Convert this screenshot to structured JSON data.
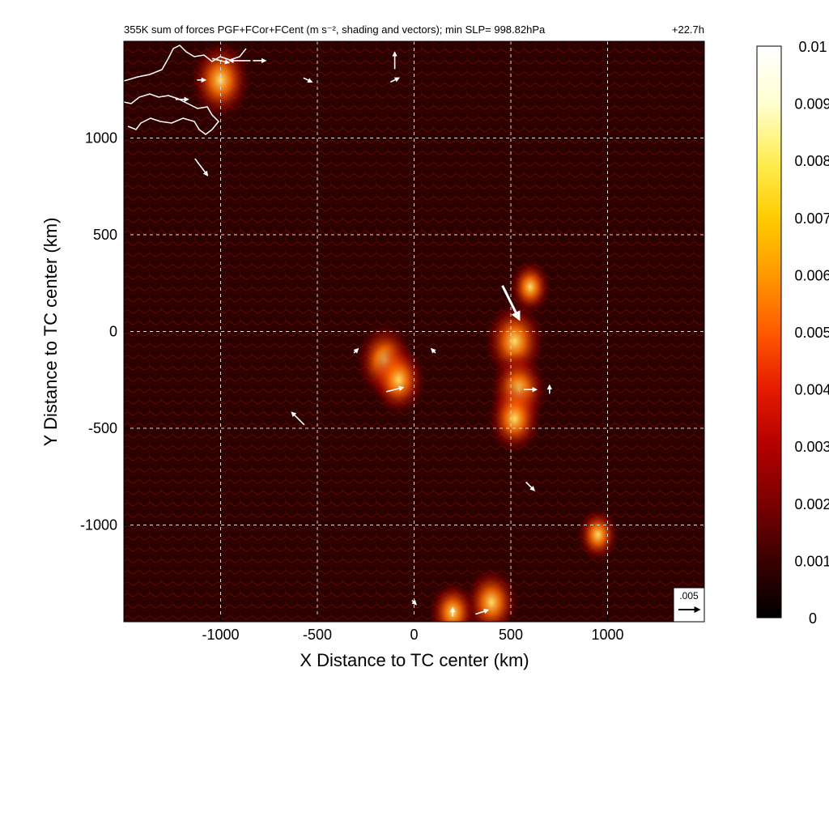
{
  "chart_data": {
    "type": "heatmap",
    "title": "355K sum of forces PGF+FCor+FCent (m s⁻², shading and vectors); min SLP= 998.82hPa",
    "time_label": "+22.7h",
    "xlabel": "X Distance to TC center (km)",
    "ylabel": "Y Distance to TC center (km)",
    "xlim": [
      -1500,
      1500
    ],
    "ylim": [
      -1500,
      1500
    ],
    "xticks": [
      -1000,
      -500,
      0,
      500,
      1000
    ],
    "yticks": [
      -1000,
      -500,
      0,
      500,
      1000
    ],
    "grid": true,
    "colorbar": {
      "range": [
        0,
        0.01
      ],
      "ticks": [
        "0",
        "0.001",
        "0.002",
        "0.003",
        "0.004",
        "0.005",
        "0.006",
        "0.007",
        "0.008",
        "0.009",
        "0.01"
      ],
      "colors": [
        "#000000",
        "#3a0000",
        "#7a0000",
        "#b30000",
        "#e61a00",
        "#ff5a00",
        "#ff9900",
        "#ffcc00",
        "#ffee55",
        "#ffffd0",
        "#ffffff"
      ]
    },
    "reference_vector": {
      "label": ".005",
      "value": 0.005
    },
    "hotspots": [
      {
        "x": -150,
        "y": -150,
        "intensity": 0.0065
      },
      {
        "x": -80,
        "y": -250,
        "intensity": 0.006
      },
      {
        "x": 520,
        "y": -50,
        "intensity": 0.007
      },
      {
        "x": 540,
        "y": -300,
        "intensity": 0.0065
      },
      {
        "x": 520,
        "y": -450,
        "intensity": 0.006
      },
      {
        "x": 400,
        "y": -1400,
        "intensity": 0.006
      },
      {
        "x": -1000,
        "y": 1300,
        "intensity": 0.007
      },
      {
        "x": 600,
        "y": 230,
        "intensity": 0.004
      },
      {
        "x": 950,
        "y": -1050,
        "intensity": 0.004
      },
      {
        "x": 200,
        "y": -1450,
        "intensity": 0.005
      }
    ],
    "vectors": [
      {
        "x": -1000,
        "y": 1400,
        "u": 0.004,
        "v": -0.001
      },
      {
        "x": -900,
        "y": 1400,
        "u": -0.005,
        "v": 0.0
      },
      {
        "x": -800,
        "y": 1400,
        "u": 0.003,
        "v": 0.0
      },
      {
        "x": -1100,
        "y": 1300,
        "u": 0.002,
        "v": 0.0
      },
      {
        "x": -1200,
        "y": 1200,
        "u": 0.003,
        "v": 0.0
      },
      {
        "x": -100,
        "y": 1400,
        "u": 0.0,
        "v": 0.004
      },
      {
        "x": -550,
        "y": 1300,
        "u": 0.002,
        "v": -0.001
      },
      {
        "x": -100,
        "y": 1300,
        "u": 0.002,
        "v": 0.001
      },
      {
        "x": -1100,
        "y": 850,
        "u": 0.003,
        "v": -0.004
      },
      {
        "x": 500,
        "y": 150,
        "u": 0.004,
        "v": -0.008
      },
      {
        "x": -600,
        "y": -450,
        "u": -0.003,
        "v": 0.003
      },
      {
        "x": -100,
        "y": -300,
        "u": 0.004,
        "v": 0.001
      },
      {
        "x": 600,
        "y": -300,
        "u": 0.003,
        "v": 0.0
      },
      {
        "x": 600,
        "y": -800,
        "u": 0.002,
        "v": -0.002
      },
      {
        "x": 200,
        "y": -1450,
        "u": 0.0,
        "v": 0.002
      },
      {
        "x": 350,
        "y": -1450,
        "u": 0.003,
        "v": 0.001
      },
      {
        "x": 0,
        "y": -1400,
        "u": 0.001,
        "v": -0.001
      },
      {
        "x": 700,
        "y": -300,
        "u": 0.0,
        "v": 0.002
      },
      {
        "x": -300,
        "y": -100,
        "u": 0.001,
        "v": 0.001
      },
      {
        "x": 100,
        "y": -100,
        "u": -0.001,
        "v": 0.001
      }
    ]
  }
}
